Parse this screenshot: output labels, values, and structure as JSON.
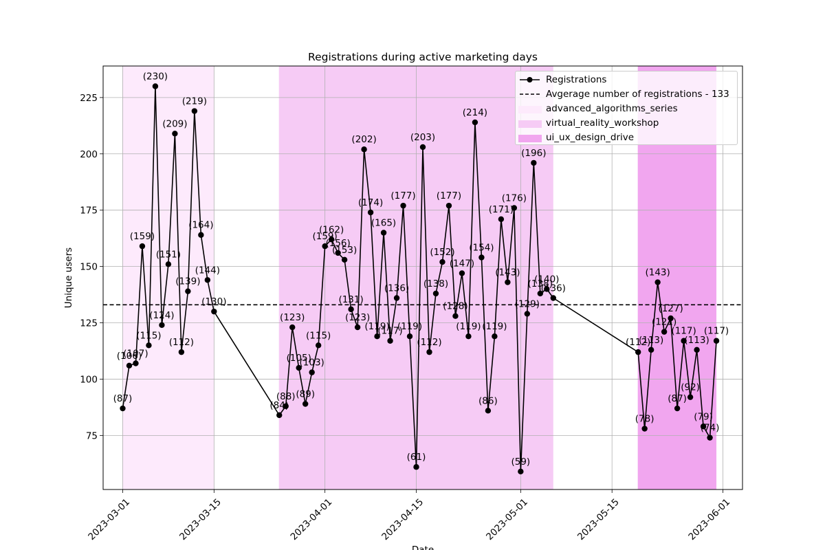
{
  "chart_data": {
    "type": "line",
    "title": "Registrations during active marketing days",
    "xlabel": "Date",
    "ylabel": "Unique users",
    "x_range": [
      "2023-02-26",
      "2023-06-04"
    ],
    "ylim": [
      51,
      239
    ],
    "grid": true,
    "legend_position": "top-right",
    "x_ticks": [
      "2023-03-01",
      "2023-03-15",
      "2023-04-01",
      "2023-04-15",
      "2023-05-01",
      "2023-05-15",
      "2023-06-01"
    ],
    "y_ticks": [
      75,
      100,
      125,
      150,
      175,
      200,
      225
    ],
    "series": [
      {
        "name": "Registrations",
        "color": "#000000",
        "points": [
          [
            "2023-03-01",
            87
          ],
          [
            "2023-03-02",
            106
          ],
          [
            "2023-03-03",
            107
          ],
          [
            "2023-03-04",
            159
          ],
          [
            "2023-03-05",
            115
          ],
          [
            "2023-03-06",
            230
          ],
          [
            "2023-03-07",
            124
          ],
          [
            "2023-03-08",
            151
          ],
          [
            "2023-03-09",
            209
          ],
          [
            "2023-03-10",
            112
          ],
          [
            "2023-03-11",
            139
          ],
          [
            "2023-03-12",
            219
          ],
          [
            "2023-03-13",
            164
          ],
          [
            "2023-03-14",
            144
          ],
          [
            "2023-03-15",
            130
          ],
          [
            "2023-03-25",
            84
          ],
          [
            "2023-03-26",
            88
          ],
          [
            "2023-03-27",
            123
          ],
          [
            "2023-03-28",
            105
          ],
          [
            "2023-03-29",
            89
          ],
          [
            "2023-03-30",
            103
          ],
          [
            "2023-03-31",
            115
          ],
          [
            "2023-04-01",
            159
          ],
          [
            "2023-04-02",
            162
          ],
          [
            "2023-04-03",
            156
          ],
          [
            "2023-04-04",
            153
          ],
          [
            "2023-04-05",
            131
          ],
          [
            "2023-04-06",
            123
          ],
          [
            "2023-04-07",
            202
          ],
          [
            "2023-04-08",
            174
          ],
          [
            "2023-04-09",
            119
          ],
          [
            "2023-04-10",
            165
          ],
          [
            "2023-04-11",
            117
          ],
          [
            "2023-04-12",
            136
          ],
          [
            "2023-04-13",
            177
          ],
          [
            "2023-04-14",
            119
          ],
          [
            "2023-04-15",
            61
          ],
          [
            "2023-04-16",
            203
          ],
          [
            "2023-04-17",
            112
          ],
          [
            "2023-04-18",
            138
          ],
          [
            "2023-04-19",
            152
          ],
          [
            "2023-04-20",
            177
          ],
          [
            "2023-04-21",
            128
          ],
          [
            "2023-04-22",
            147
          ],
          [
            "2023-04-23",
            119
          ],
          [
            "2023-04-24",
            214
          ],
          [
            "2023-04-25",
            154
          ],
          [
            "2023-04-26",
            86
          ],
          [
            "2023-04-27",
            119
          ],
          [
            "2023-04-28",
            171
          ],
          [
            "2023-04-29",
            143
          ],
          [
            "2023-04-30",
            176
          ],
          [
            "2023-05-01",
            59
          ],
          [
            "2023-05-02",
            129
          ],
          [
            "2023-05-03",
            196
          ],
          [
            "2023-05-04",
            138
          ],
          [
            "2023-05-05",
            140
          ],
          [
            "2023-05-06",
            136
          ],
          [
            "2023-05-19",
            112
          ],
          [
            "2023-05-20",
            78
          ],
          [
            "2023-05-21",
            113
          ],
          [
            "2023-05-22",
            143
          ],
          [
            "2023-05-23",
            121
          ],
          [
            "2023-05-24",
            127
          ],
          [
            "2023-05-25",
            87
          ],
          [
            "2023-05-26",
            117
          ],
          [
            "2023-05-27",
            92
          ],
          [
            "2023-05-28",
            113
          ],
          [
            "2023-05-29",
            79
          ],
          [
            "2023-05-30",
            74
          ],
          [
            "2023-05-31",
            117
          ]
        ]
      },
      {
        "name": "Avgerage number of registrations - 133",
        "type": "hline",
        "value": 133,
        "color": "#000000",
        "style": "dashed"
      }
    ],
    "spans": [
      {
        "name": "advanced_algorithms_series",
        "start": "2023-03-01",
        "end": "2023-03-15",
        "color": "#fdeafc"
      },
      {
        "name": "virtual_reality_workshop",
        "start": "2023-03-25",
        "end": "2023-05-06",
        "color": "#f6cbf5"
      },
      {
        "name": "ui_ux_design_drive",
        "start": "2023-05-19",
        "end": "2023-05-31",
        "color": "#f1a6ef"
      }
    ]
  }
}
